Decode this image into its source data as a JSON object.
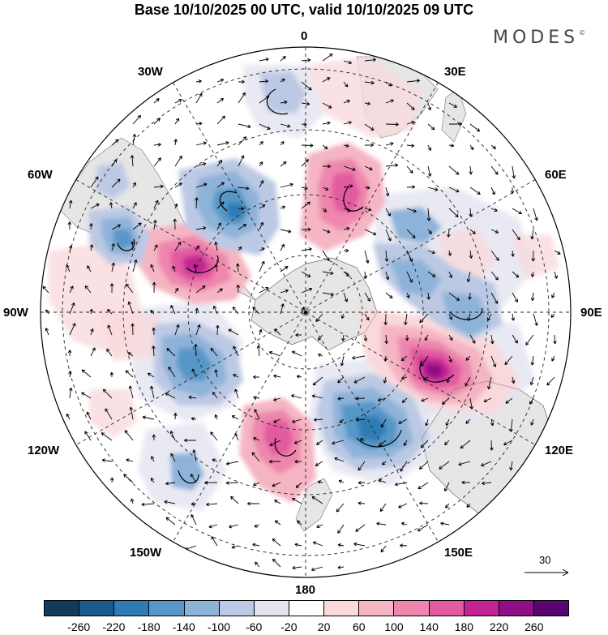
{
  "title": "Base 10/10/2025 00 UTC, valid 10/10/2025 09 UTC",
  "brand": "MODES",
  "brand_mark": "©",
  "longitude_labels": {
    "n0": "0",
    "n30e": "30E",
    "n60e": "60E",
    "n90e": "90E",
    "n120e": "120E",
    "n150e": "150E",
    "n180": "180",
    "n150w": "150W",
    "n120w": "120W",
    "n90w": "90W",
    "n60w": "60W",
    "n30w": "30W"
  },
  "reference_vector": {
    "label": "30"
  },
  "colorbar": {
    "ticks": [
      "-260",
      "-220",
      "-180",
      "-140",
      "-100",
      "-60",
      "-20",
      "20",
      "60",
      "100",
      "140",
      "180",
      "220",
      "260"
    ],
    "colors": [
      "#143a5c",
      "#1d5a8c",
      "#2f7bb6",
      "#5797c7",
      "#8eb3d9",
      "#bcc9e4",
      "#e3e4f0",
      "#ffffff",
      "#f9d9dc",
      "#f5b5c3",
      "#ee86ad",
      "#e25aa0",
      "#c22593",
      "#8e0f86",
      "#58056f"
    ]
  },
  "map": {
    "projection": "south polar stereographic",
    "land_color": "#e6e6e6",
    "blobs": [
      {
        "name": "positive-anomaly-south-america-west",
        "value": 240
      },
      {
        "name": "positive-anomaly-south-atlantic",
        "value": 180
      },
      {
        "name": "positive-anomaly-indian-ocean-east",
        "value": 260
      },
      {
        "name": "positive-anomaly-pacific",
        "value": 160
      },
      {
        "name": "negative-anomaly-south-atlantic-west",
        "value": -200
      },
      {
        "name": "negative-anomaly-southern-ocean-south-of-australia",
        "value": -200
      },
      {
        "name": "negative-anomaly-pacific-east",
        "value": -160
      },
      {
        "name": "negative-anomaly-indian-ocean",
        "value": -140
      }
    ]
  }
}
